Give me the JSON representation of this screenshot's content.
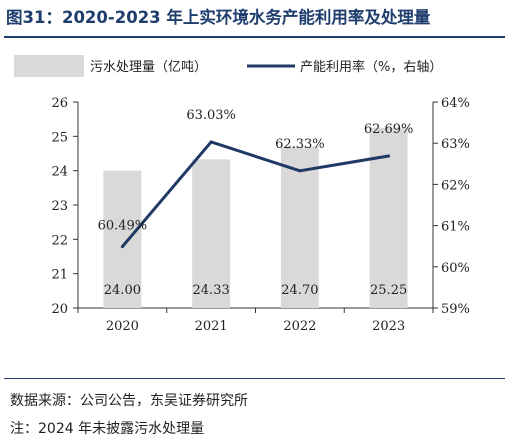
{
  "title": "图31：2020-2023 年上实环境水务产能利用率及处理量",
  "source": "数据来源：公司公告，东吴证券研究所",
  "note": "注：2024 年未披露污水处理量",
  "colors": {
    "bar": "#d9d9d9",
    "line": "#1f3864",
    "title": "#1f3e6e"
  },
  "chart_data": {
    "type": "bar+line",
    "categories": [
      "2020",
      "2021",
      "2022",
      "2023"
    ],
    "series": [
      {
        "name": "污水处理量（亿吨）",
        "type": "bar",
        "axis": "left",
        "values": [
          24.0,
          24.33,
          24.7,
          25.25
        ],
        "labels": [
          "24.00",
          "24.33",
          "24.70",
          "25.25"
        ]
      },
      {
        "name": "产能利用率（%，右轴）",
        "type": "line",
        "axis": "right",
        "values": [
          60.49,
          63.03,
          62.33,
          62.69
        ],
        "labels": [
          "60.49%",
          "63.03%",
          "62.33%",
          "62.69%"
        ]
      }
    ],
    "y_left": {
      "min": 20,
      "max": 26,
      "ticks": [
        "20",
        "21",
        "22",
        "23",
        "24",
        "25",
        "26"
      ]
    },
    "y_right": {
      "min": 59,
      "max": 64,
      "ticks": [
        "59%",
        "60%",
        "61%",
        "62%",
        "63%",
        "64%"
      ]
    },
    "legend": "top",
    "grid": false
  }
}
